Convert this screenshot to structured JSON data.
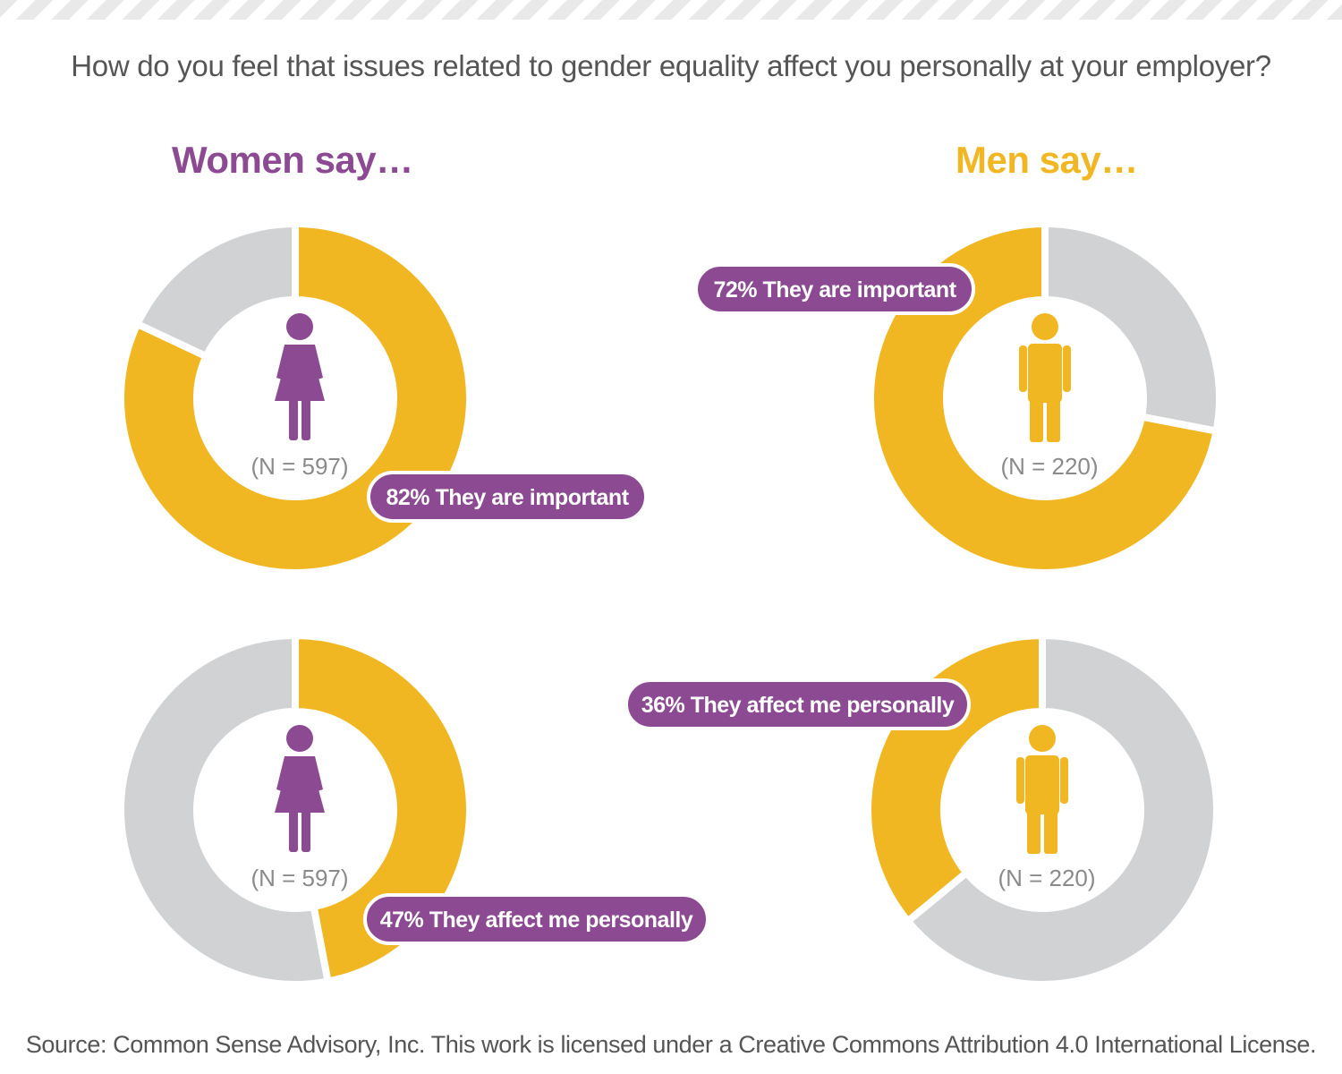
{
  "question": "How do you feel that issues related to gender equality affect you personally at your employer?",
  "women_heading": "Women say…",
  "men_heading": "Men say…",
  "source": "Source: Common Sense Advisory, Inc. This work is licensed under a Creative Commons Attribution 4.0 International License.",
  "colors": {
    "highlight": "#f0b722",
    "remainder": "#d1d2d4",
    "women": "#8b4a92",
    "men": "#f0b722",
    "label_bg": "#8b4a92",
    "n_text": "#8a8a8a"
  },
  "chart_data": [
    {
      "type": "pie",
      "group": "Women",
      "icon": "woman-icon",
      "n_label": "(N = 597)",
      "value": 82,
      "label": "82% They are important"
    },
    {
      "type": "pie",
      "group": "Men",
      "icon": "man-icon",
      "n_label": "(N = 220)",
      "value": 72,
      "label": "72% They are important"
    },
    {
      "type": "pie",
      "group": "Women",
      "icon": "woman-icon",
      "n_label": "(N = 597)",
      "value": 47,
      "label": "47% They affect me personally"
    },
    {
      "type": "pie",
      "group": "Men",
      "icon": "man-icon",
      "n_label": "(N = 220)",
      "value": 36,
      "label": "36% They affect me personally"
    }
  ]
}
